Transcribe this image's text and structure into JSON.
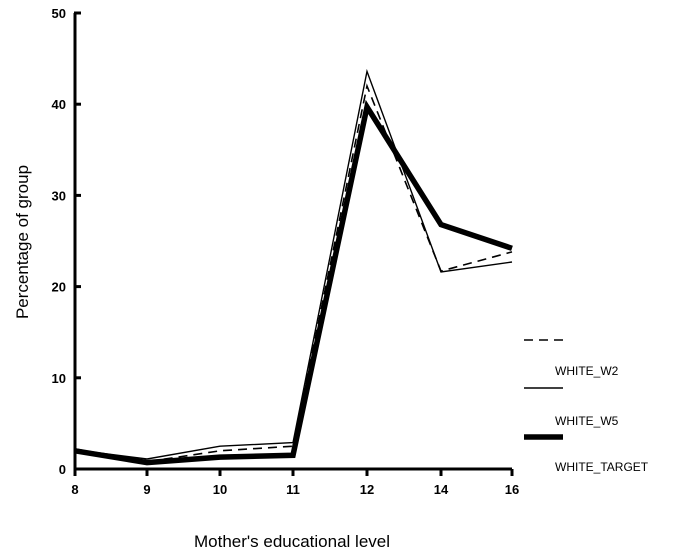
{
  "chart_data": {
    "type": "line",
    "title": "",
    "xlabel": "Mother's educational level",
    "ylabel": "Percentage of group",
    "x": [
      8,
      9,
      10,
      11,
      12,
      14,
      16
    ],
    "x_tick_labels": [
      "8",
      "9",
      "10",
      "11",
      "12",
      "14",
      "16"
    ],
    "y_ticks": [
      0,
      10,
      20,
      30,
      40,
      50
    ],
    "y_tick_labels": [
      "0",
      "10",
      "20",
      "30",
      "40",
      "50"
    ],
    "ylim": [
      0,
      50
    ],
    "grid": false,
    "legend_position": "right",
    "series": [
      {
        "name": "WHITE_W2",
        "style": "dashed",
        "color": "#000000",
        "values": [
          2.2,
          0.8,
          2.0,
          2.5,
          42.0,
          21.7,
          23.8
        ]
      },
      {
        "name": "WHITE_W5",
        "style": "thin",
        "color": "#000000",
        "values": [
          2.1,
          1.1,
          2.5,
          2.9,
          43.6,
          21.6,
          22.7
        ]
      },
      {
        "name": "WHITE_TARGET",
        "style": "thick",
        "color": "#000000",
        "values": [
          2.0,
          0.7,
          1.3,
          1.5,
          39.7,
          26.8,
          24.2
        ]
      }
    ]
  }
}
